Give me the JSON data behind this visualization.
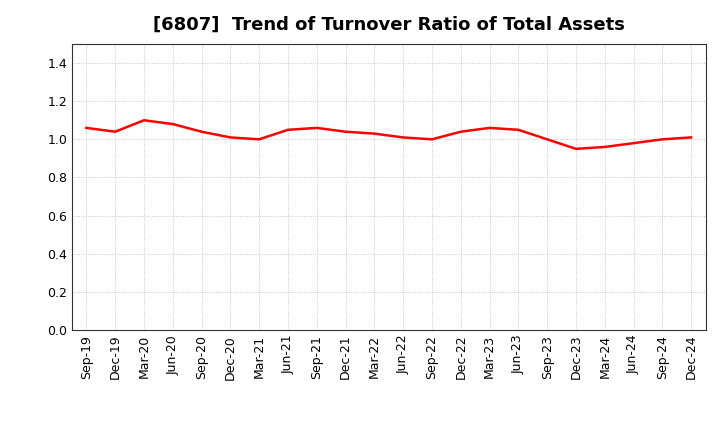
{
  "title": "[6807]  Trend of Turnover Ratio of Total Assets",
  "x_labels": [
    "Sep-19",
    "Dec-19",
    "Mar-20",
    "Jun-20",
    "Sep-20",
    "Dec-20",
    "Mar-21",
    "Jun-21",
    "Sep-21",
    "Dec-21",
    "Mar-22",
    "Jun-22",
    "Sep-22",
    "Dec-22",
    "Mar-23",
    "Jun-23",
    "Sep-23",
    "Dec-23",
    "Mar-24",
    "Jun-24",
    "Sep-24",
    "Dec-24"
  ],
  "y_values": [
    1.06,
    1.04,
    1.1,
    1.08,
    1.04,
    1.01,
    1.0,
    1.05,
    1.06,
    1.04,
    1.03,
    1.01,
    1.0,
    1.04,
    1.06,
    1.05,
    1.0,
    0.95,
    0.96,
    0.98,
    1.0,
    1.01
  ],
  "line_color": "#ff0000",
  "line_width": 1.8,
  "ylim": [
    0.0,
    1.5
  ],
  "yticks": [
    0.0,
    0.2,
    0.4,
    0.6,
    0.8,
    1.0,
    1.2,
    1.4
  ],
  "bg_color": "#ffffff",
  "plot_bg_color": "#ffffff",
  "grid_color": "#bbbbbb",
  "title_fontsize": 13,
  "tick_fontsize": 9,
  "spine_color": "#333333"
}
